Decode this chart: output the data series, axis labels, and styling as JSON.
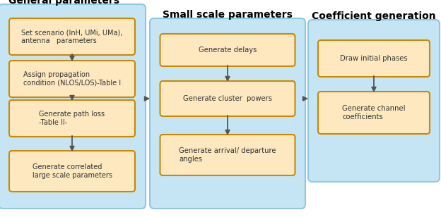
{
  "title_general": "General parameters",
  "title_small": "Small scale parameters",
  "title_coeff": "Coefficient generation",
  "box_bg_light": "#FDE8C0",
  "box_bg_dark": "#F5C070",
  "box_edge": "#CC8800",
  "group_bg": "#C5E5F5",
  "group_edge": "#90C8E0",
  "arrow_color": "#555555",
  "general_boxes": [
    "Set scenario (InH, UMi, UMa),\nantenna   parameters",
    "Assign propagation\ncondition (NLOS/LOS)-Table I",
    "Generate path loss\n-Table II-",
    "Generate correlated\nlarge scale parameters"
  ],
  "small_boxes": [
    "Generate delays",
    "Generate cluster  powers",
    "Generate arrival/ departure\nangles"
  ],
  "coeff_boxes": [
    "Draw initial phases",
    "Generate channel\ncoefficients"
  ]
}
